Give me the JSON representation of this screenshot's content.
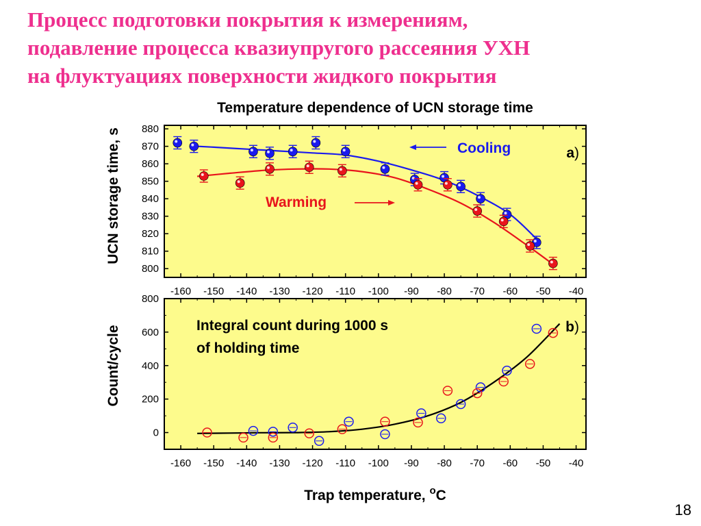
{
  "slide": {
    "title_lines": [
      "Процесс подготовки покрытия к измерениям,",
      "подавление процесса квазиупругого рассеяния УХН",
      "на флуктуациях поверхности жидкого покрытия"
    ],
    "page_number": "18"
  },
  "colors": {
    "accent": "#ee2f8e",
    "cooling": "#1a1aee",
    "warming": "#e8141c",
    "plot_bg": "#fdfb8c"
  },
  "chart_data": [
    {
      "id": "a",
      "type": "scatter",
      "title": "Temperature dependence of UCN storage time",
      "xlabel": "",
      "ylabel": "UCN storage time, s",
      "panel_label": "a",
      "xlim": [
        -165,
        -37
      ],
      "ylim": [
        795,
        882
      ],
      "xticks": [
        -160,
        -150,
        -140,
        -130,
        -120,
        -110,
        -100,
        -90,
        -80,
        -70,
        -60,
        -50,
        -40
      ],
      "yticks": [
        800,
        810,
        820,
        830,
        840,
        850,
        860,
        870,
        880
      ],
      "annotations": {
        "cooling": "Cooling",
        "warming": "Warming"
      },
      "series": [
        {
          "name": "Cooling",
          "color": "#1a1aee",
          "marker": "filled-circle",
          "x": [
            -161,
            -156,
            -138,
            -133,
            -126,
            -119,
            -110,
            -98,
            -89,
            -80,
            -75,
            -69,
            -61,
            -52
          ],
          "y": [
            872,
            870,
            867,
            866,
            867,
            872,
            867,
            857,
            851,
            852,
            847,
            840,
            831,
            815
          ]
        },
        {
          "name": "Warming",
          "color": "#e8141c",
          "marker": "filled-circle",
          "x": [
            -153,
            -142,
            -133,
            -121,
            -111,
            -88,
            -79,
            -70,
            -62,
            -54,
            -47
          ],
          "y": [
            853,
            849,
            857,
            858,
            856,
            848,
            848,
            833,
            827,
            813,
            803
          ]
        }
      ],
      "fits": [
        {
          "name": "Cooling fit",
          "color": "#1a1aee",
          "x": [
            -157,
            -150,
            -140,
            -130,
            -120,
            -110,
            -100,
            -90,
            -80,
            -70,
            -60,
            -52
          ],
          "y": [
            870.2,
            869.5,
            868.4,
            867.3,
            866.2,
            865.0,
            861.5,
            856.5,
            850.5,
            842.0,
            831.0,
            817.0
          ]
        },
        {
          "name": "Warming fit",
          "color": "#e8141c",
          "x": [
            -155,
            -145,
            -135,
            -125,
            -115,
            -105,
            -95,
            -85,
            -75,
            -65,
            -55,
            -47
          ],
          "y": [
            852.8,
            854.6,
            856.2,
            857.0,
            857.0,
            855.5,
            852.0,
            845.5,
            837.5,
            826.5,
            813.5,
            802.5
          ]
        }
      ]
    },
    {
      "id": "b",
      "type": "scatter",
      "title": "",
      "xlabel": "Trap temperature, °C",
      "ylabel": "Count/cycle",
      "panel_label": "b",
      "annotation_lines": [
        "Integral count during 1000 s",
        "of holding time"
      ],
      "xlim": [
        -165,
        -37
      ],
      "ylim": [
        -100,
        800
      ],
      "xticks": [
        -160,
        -150,
        -140,
        -130,
        -120,
        -110,
        -100,
        -90,
        -80,
        -70,
        -60,
        -50,
        -40
      ],
      "yticks": [
        0,
        200,
        400,
        600,
        800
      ],
      "series": [
        {
          "name": "Cooling",
          "color": "#1a1aee",
          "marker": "open-circle",
          "x": [
            -138,
            -132,
            -126,
            -118,
            -109,
            -98,
            -87,
            -81,
            -75,
            -69,
            -61,
            -52
          ],
          "y": [
            10,
            5,
            30,
            -50,
            65,
            -10,
            115,
            85,
            170,
            270,
            370,
            620
          ]
        },
        {
          "name": "Warming",
          "color": "#e8141c",
          "marker": "open-circle",
          "x": [
            -152,
            -141,
            -132,
            -121,
            -111,
            -98,
            -88,
            -79,
            -70,
            -62,
            -54,
            -47
          ],
          "y": [
            0,
            -30,
            -30,
            -5,
            20,
            65,
            60,
            250,
            235,
            305,
            410,
            595
          ]
        }
      ],
      "fits": [
        {
          "name": "Fit",
          "color": "#000000",
          "x": [
            -155,
            -145,
            -135,
            -125,
            -115,
            -105,
            -95,
            -85,
            -75,
            -65,
            -55,
            -45
          ],
          "y": [
            -5,
            -3,
            -1,
            0,
            5,
            20,
            50,
            100,
            180,
            300,
            450,
            650
          ]
        }
      ]
    }
  ]
}
